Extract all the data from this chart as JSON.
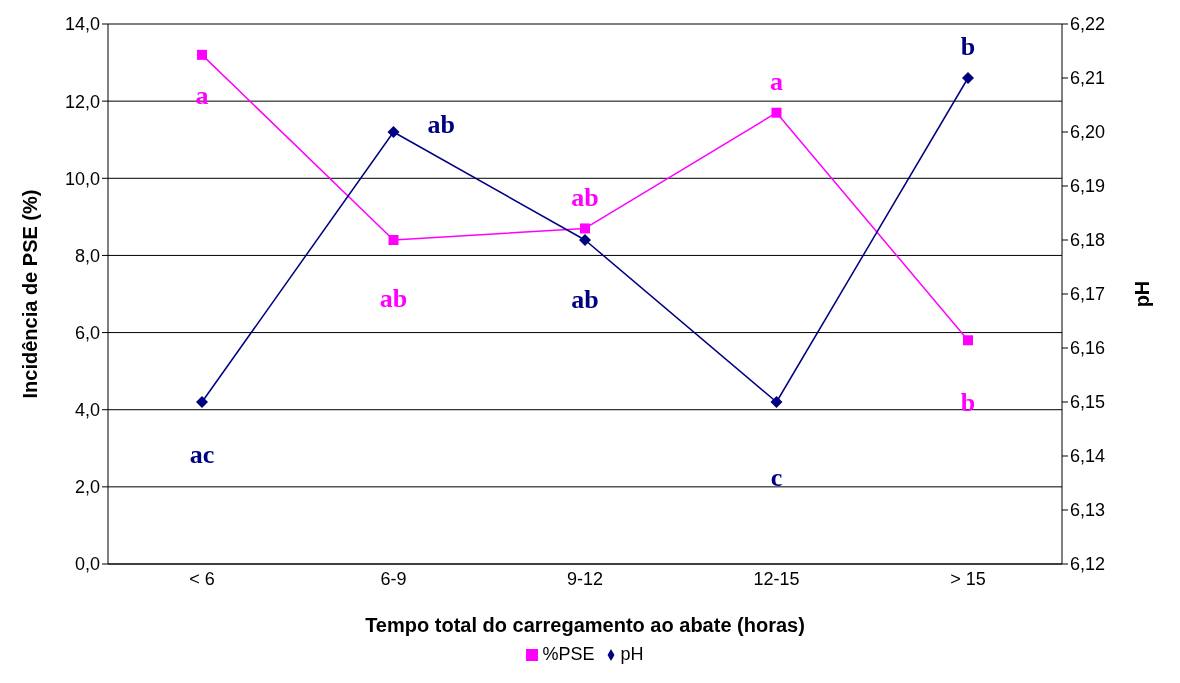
{
  "chart_data": {
    "type": "line",
    "xlabel": "Tempo total do carregamento ao abate (horas)",
    "ylabel": "Incidência de PSE (%)",
    "y2label": "pH",
    "categories": [
      "< 6",
      "6-9",
      "9-12",
      "12-15",
      "> 15"
    ],
    "series": [
      {
        "name": "%PSE",
        "color": "#ff00ff",
        "marker": "square",
        "values": [
          13.2,
          8.4,
          8.7,
          11.7,
          5.8
        ]
      },
      {
        "name": "pH",
        "color": "#000080",
        "marker": "diamond",
        "axis": "y2",
        "values": [
          6.15,
          6.2,
          6.18,
          6.15,
          6.21
        ]
      }
    ],
    "ylim": [
      0,
      14
    ],
    "yticks": [
      {
        "value": 0,
        "label": "0,0"
      },
      {
        "value": 2,
        "label": "2,0"
      },
      {
        "value": 4,
        "label": "4,0"
      },
      {
        "value": 6,
        "label": "6,0"
      },
      {
        "value": 8,
        "label": "8,0"
      },
      {
        "value": 10,
        "label": "10,0"
      },
      {
        "value": 12,
        "label": "12,0"
      },
      {
        "value": 14,
        "label": "14,0"
      }
    ],
    "y2lim": [
      6.12,
      6.22
    ],
    "y2ticks": [
      {
        "value": 6.12,
        "label": "6,12"
      },
      {
        "value": 6.13,
        "label": "6,13"
      },
      {
        "value": 6.14,
        "label": "6,14"
      },
      {
        "value": 6.15,
        "label": "6,15"
      },
      {
        "value": 6.16,
        "label": "6,16"
      },
      {
        "value": 6.17,
        "label": "6,17"
      },
      {
        "value": 6.18,
        "label": "6,18"
      },
      {
        "value": 6.19,
        "label": "6,19"
      },
      {
        "value": 6.2,
        "label": "6,20"
      },
      {
        "value": 6.21,
        "label": "6,21"
      },
      {
        "value": 6.22,
        "label": "6,22"
      }
    ],
    "annotations": [
      "a",
      "ab",
      "ab",
      "a",
      "b",
      "ac",
      "ab",
      "ab",
      "c",
      "b"
    ],
    "grid": "y",
    "legend": "bottom"
  }
}
